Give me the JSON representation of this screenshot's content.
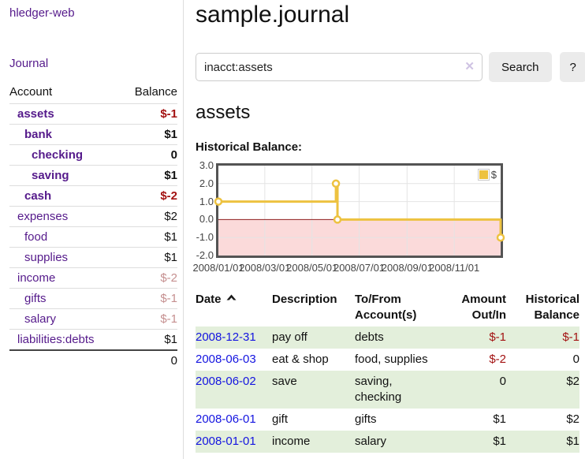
{
  "app": {
    "brand": "hledger-web",
    "nav_journal": "Journal"
  },
  "colors": {
    "accent_purple": "#551a8b",
    "link_blue": "#1414e0",
    "negative_red": "#a31212",
    "faded_red": "#c58f8f",
    "stripe_green": "#e3efdb",
    "button_gray": "#ebebeb",
    "series_gold": "#edc240"
  },
  "sidebar": {
    "accounts_header": {
      "account": "Account",
      "balance": "Balance"
    },
    "accounts": [
      {
        "name": "assets",
        "balance": "$-1"
      },
      {
        "name": "bank",
        "balance": "$1"
      },
      {
        "name": "checking",
        "balance": "0"
      },
      {
        "name": "saving",
        "balance": "$1"
      },
      {
        "name": "cash",
        "balance": "$-2"
      },
      {
        "name": "expenses",
        "balance": "$2"
      },
      {
        "name": "food",
        "balance": "$1"
      },
      {
        "name": "supplies",
        "balance": "$1"
      },
      {
        "name": "income",
        "balance": "$-2"
      },
      {
        "name": "gifts",
        "balance": "$-1"
      },
      {
        "name": "salary",
        "balance": "$-1"
      },
      {
        "name": "liabilities:debts",
        "balance": "$1"
      }
    ],
    "total": "0"
  },
  "header": {
    "title": "sample.journal"
  },
  "search": {
    "value": "inacct:assets",
    "clear_icon": "✕",
    "search_label": "Search",
    "help_label": "?"
  },
  "account_page": {
    "heading": "assets",
    "chart_label": "Historical Balance:"
  },
  "chart_data": {
    "type": "line",
    "title": "Historical Balance:",
    "x_range": [
      "2008-01-01",
      "2008-12-31"
    ],
    "ylim": [
      -2,
      3
    ],
    "y_ticks": [
      {
        "value": 3,
        "label": "3.0"
      },
      {
        "value": 2,
        "label": "2.0"
      },
      {
        "value": 1,
        "label": "1.0"
      },
      {
        "value": 0,
        "label": "0.0"
      },
      {
        "value": -1,
        "label": "-1.0"
      },
      {
        "value": -2,
        "label": "-2.0"
      }
    ],
    "x_ticks": [
      {
        "date": "2008-01-01",
        "label": "2008/01/01"
      },
      {
        "date": "2008-03-01",
        "label": "2008/03/01"
      },
      {
        "date": "2008-05-01",
        "label": "2008/05/01"
      },
      {
        "date": "2008-07-01",
        "label": "2008/07/01"
      },
      {
        "date": "2008-09-01",
        "label": "2008/09/01"
      },
      {
        "date": "2008-11-01",
        "label": "2008/11/01"
      }
    ],
    "series": [
      {
        "name": "$",
        "color": "#edc240",
        "step": true,
        "points": [
          {
            "date": "2008-01-01",
            "value": 1
          },
          {
            "date": "2008-06-01",
            "value": 2
          },
          {
            "date": "2008-06-03",
            "value": 0
          },
          {
            "date": "2008-12-31",
            "value": -1
          }
        ]
      }
    ],
    "grid": true,
    "grid_color": "#e4e4e4",
    "negative_region_color": "#fbdada",
    "zero_line_color": "#8f1e1e",
    "legend_position": "top-right"
  },
  "register": {
    "columns": [
      "Date",
      "Description",
      "To/From Account(s)",
      "Amount Out/In",
      "Historical Balance"
    ],
    "rows": [
      {
        "date": "2008-12-31",
        "description": "pay off",
        "accounts": "debts",
        "amount": "$-1",
        "balance": "$-1"
      },
      {
        "date": "2008-06-03",
        "description": "eat & shop",
        "accounts": "food, supplies",
        "amount": "$-2",
        "balance": "0"
      },
      {
        "date": "2008-06-02",
        "description": "save",
        "accounts": "saving, checking",
        "amount": "0",
        "balance": "$2"
      },
      {
        "date": "2008-06-01",
        "description": "gift",
        "accounts": "gifts",
        "amount": "$1",
        "balance": "$2"
      },
      {
        "date": "2008-01-01",
        "description": "income",
        "accounts": "salary",
        "amount": "$1",
        "balance": "$1"
      }
    ]
  }
}
